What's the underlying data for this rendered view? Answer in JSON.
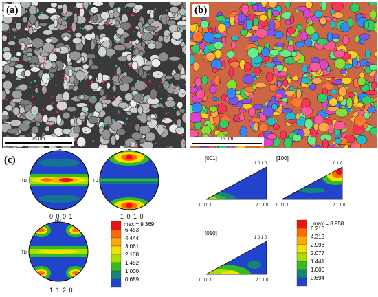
{
  "panels": {
    "a": {
      "label": "(a)",
      "scale_text": "15 um"
    },
    "b": {
      "label": "(b)",
      "scale_text": "15 um"
    },
    "c": {
      "label": "(c)"
    }
  },
  "pole_figures": {
    "pf0001": {
      "ring_label": "0 0 0 1",
      "rd": "RD",
      "td": "TD"
    },
    "pf1010": {
      "ring_label": "1 0 1 0",
      "rd": "RD",
      "td": "TD"
    },
    "pf1120": {
      "ring_label": "1 1 2 0",
      "rd": "RD",
      "td": "TD"
    }
  },
  "pf_legend": {
    "max_text": "max = 9.369",
    "levels": [
      "6.453",
      "4.444",
      "3.061",
      "2.108",
      "1.452",
      "1.000",
      "0.689"
    ],
    "colors": [
      "#ee1111",
      "#ff6a00",
      "#ffaa00",
      "#f5e000",
      "#aadd00",
      "#33bb22",
      "#118877",
      "#2244cc"
    ]
  },
  "ipf": {
    "t001": {
      "title": "[001]",
      "corner_left": "0 0 0 1",
      "corner_right": "2 1 1 0",
      "corner_top": "1 0 1 0"
    },
    "t100": {
      "title": "[100]",
      "corner_left": "0 0 0 1",
      "corner_right": "2 1 1 0",
      "corner_top": "1 0 1 0"
    },
    "t010": {
      "title": "[010]",
      "corner_left": "0 0 0 1",
      "corner_right": "2 1 1 0",
      "corner_top": "1 0 1 0"
    }
  },
  "ipf_legend": {
    "max_text": "max = 8.958",
    "levels": [
      "6.216",
      "4.313",
      "2.993",
      "2.077",
      "1.441",
      "1.000",
      "0.694"
    ],
    "colors": [
      "#ee1111",
      "#ff6a00",
      "#ffaa00",
      "#f5e000",
      "#aadd00",
      "#33bb22",
      "#118877",
      "#2244cc"
    ]
  }
}
